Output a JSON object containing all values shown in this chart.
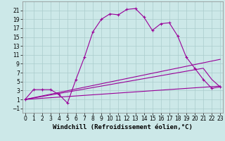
{
  "background_color": "#cce8e8",
  "grid_color": "#aacccc",
  "line_color": "#990099",
  "xlabel": "Windchill (Refroidissement éolien,°C)",
  "xlabel_fontsize": 6.5,
  "ylabel_values": [
    -1,
    1,
    3,
    5,
    7,
    9,
    11,
    13,
    15,
    17,
    19,
    21
  ],
  "xlabel_values": [
    0,
    1,
    2,
    3,
    4,
    5,
    6,
    7,
    8,
    9,
    10,
    11,
    12,
    13,
    14,
    15,
    16,
    17,
    18,
    19,
    20,
    21,
    22,
    23
  ],
  "series": {
    "main": {
      "x": [
        0,
        1,
        2,
        3,
        4,
        5,
        6,
        7,
        8,
        9,
        10,
        11,
        12,
        13,
        14,
        15,
        16,
        17,
        18,
        19,
        20,
        21,
        22,
        23
      ],
      "y": [
        1,
        3.2,
        3.2,
        3.2,
        2.1,
        0.2,
        5.5,
        10.5,
        16.2,
        19.0,
        20.2,
        20.0,
        21.2,
        21.4,
        19.5,
        16.5,
        18.0,
        18.2,
        15.2,
        10.5,
        8.0,
        5.5,
        3.5,
        3.8
      ]
    },
    "line2": {
      "x": [
        0,
        23
      ],
      "y": [
        1.0,
        10.0
      ]
    },
    "line3": {
      "x": [
        0,
        21,
        22,
        23
      ],
      "y": [
        1.0,
        8.0,
        5.5,
        3.8
      ]
    },
    "line4": {
      "x": [
        0,
        23
      ],
      "y": [
        1.0,
        4.0
      ]
    }
  },
  "ylim": [
    -2,
    23
  ],
  "xlim": [
    -0.3,
    23.3
  ],
  "tick_fontsize": 5.5
}
